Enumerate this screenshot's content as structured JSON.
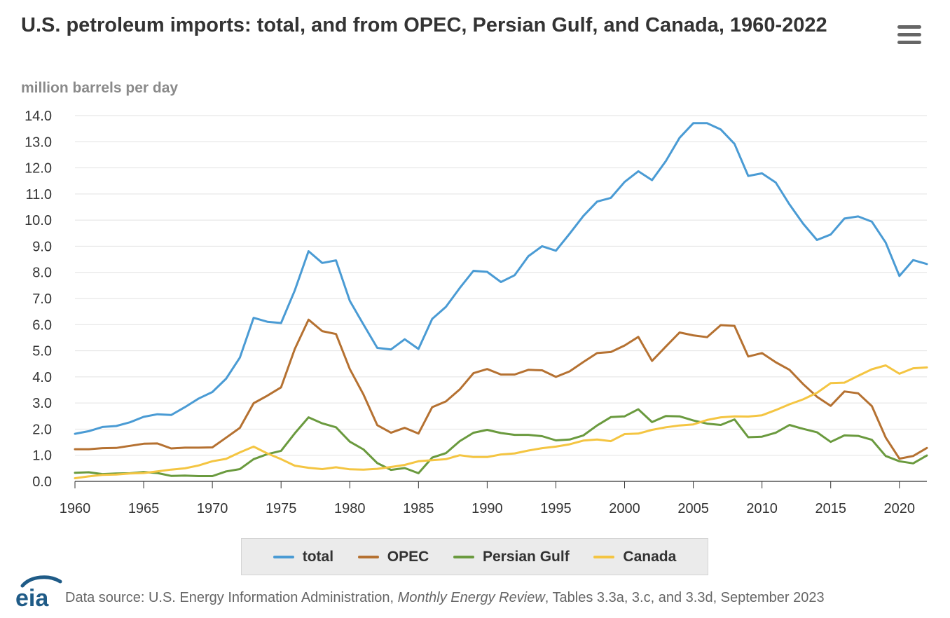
{
  "header": {
    "title": "U.S. petroleum imports: total, and from OPEC, Persian Gulf, and Canada, 1960-2022",
    "menu_icon": "hamburger-menu-icon"
  },
  "logo": {
    "text": "eia",
    "icon": "eia-logo-icon",
    "color": "#1f5b87"
  },
  "source": {
    "prefix": "Data source: U.S. Energy Information Administration, ",
    "publication": "Monthly Energy Review",
    "suffix": ", Tables 3.3a, 3.c, and 3.3d, September 2023"
  },
  "chart_data": {
    "type": "line",
    "title": "U.S. petroleum imports: total, and from OPEC, Persian Gulf, and Canada, 1960-2022",
    "ylabel": "million barrels per day",
    "xlabel": "",
    "xlim": [
      1960,
      2022
    ],
    "ylim": [
      0,
      14
    ],
    "x_ticks": [
      1960,
      1965,
      1970,
      1975,
      1980,
      1985,
      1990,
      1995,
      2000,
      2005,
      2010,
      2015,
      2020
    ],
    "y_ticks": [
      "0.0",
      "1.0",
      "2.0",
      "3.0",
      "4.0",
      "5.0",
      "6.0",
      "7.0",
      "8.0",
      "9.0",
      "10.0",
      "11.0",
      "12.0",
      "13.0",
      "14.0"
    ],
    "grid": "horizontal",
    "legend_position": "bottom-center",
    "x": [
      1960,
      1961,
      1962,
      1963,
      1964,
      1965,
      1966,
      1967,
      1968,
      1969,
      1970,
      1971,
      1972,
      1973,
      1974,
      1975,
      1976,
      1977,
      1978,
      1979,
      1980,
      1981,
      1982,
      1983,
      1984,
      1985,
      1986,
      1987,
      1988,
      1989,
      1990,
      1991,
      1992,
      1993,
      1994,
      1995,
      1996,
      1997,
      1998,
      1999,
      2000,
      2001,
      2002,
      2003,
      2004,
      2005,
      2006,
      2007,
      2008,
      2009,
      2010,
      2011,
      2012,
      2013,
      2014,
      2015,
      2016,
      2017,
      2018,
      2019,
      2020,
      2021,
      2022
    ],
    "series": [
      {
        "name": "total",
        "color": "#4a9bd4",
        "values": [
          1.82,
          1.92,
          2.08,
          2.12,
          2.26,
          2.47,
          2.57,
          2.54,
          2.84,
          3.17,
          3.42,
          3.93,
          4.74,
          6.26,
          6.11,
          6.06,
          7.31,
          8.81,
          8.36,
          8.46,
          6.91,
          6.0,
          5.11,
          5.05,
          5.44,
          5.07,
          6.22,
          6.68,
          7.4,
          8.06,
          8.02,
          7.63,
          7.89,
          8.62,
          9.0,
          8.83,
          9.48,
          10.16,
          10.71,
          10.85,
          11.46,
          11.87,
          11.53,
          12.26,
          13.15,
          13.71,
          13.71,
          13.47,
          12.92,
          11.69,
          11.79,
          11.44,
          10.6,
          9.86,
          9.24,
          9.45,
          10.06,
          10.14,
          9.94,
          9.14,
          7.86,
          8.47,
          8.32
        ]
      },
      {
        "name": "OPEC",
        "color": "#b57131",
        "values": [
          1.23,
          1.23,
          1.27,
          1.28,
          1.36,
          1.44,
          1.45,
          1.26,
          1.29,
          1.29,
          1.3,
          1.67,
          2.05,
          2.99,
          3.28,
          3.6,
          5.07,
          6.19,
          5.75,
          5.64,
          4.3,
          3.32,
          2.15,
          1.86,
          2.05,
          1.83,
          2.84,
          3.06,
          3.52,
          4.14,
          4.3,
          4.09,
          4.09,
          4.27,
          4.25,
          4.0,
          4.21,
          4.57,
          4.91,
          4.95,
          5.2,
          5.53,
          4.61,
          5.16,
          5.7,
          5.59,
          5.52,
          5.98,
          5.95,
          4.78,
          4.91,
          4.56,
          4.27,
          3.72,
          3.24,
          2.89,
          3.44,
          3.37,
          2.88,
          1.68,
          0.87,
          0.97,
          1.28
        ]
      },
      {
        "name": "Persian Gulf",
        "color": "#6a9a3e",
        "values": [
          0.33,
          0.35,
          0.28,
          0.3,
          0.31,
          0.36,
          0.32,
          0.21,
          0.22,
          0.2,
          0.2,
          0.38,
          0.47,
          0.85,
          1.04,
          1.17,
          1.84,
          2.45,
          2.22,
          2.07,
          1.52,
          1.22,
          0.7,
          0.44,
          0.51,
          0.31,
          0.91,
          1.08,
          1.54,
          1.86,
          1.97,
          1.85,
          1.78,
          1.78,
          1.73,
          1.57,
          1.6,
          1.76,
          2.14,
          2.46,
          2.49,
          2.76,
          2.27,
          2.5,
          2.49,
          2.33,
          2.21,
          2.16,
          2.37,
          1.69,
          1.71,
          1.86,
          2.16,
          2.01,
          1.88,
          1.51,
          1.76,
          1.74,
          1.59,
          0.97,
          0.77,
          0.69,
          0.99
        ]
      },
      {
        "name": "Canada",
        "color": "#f4c542",
        "values": [
          0.12,
          0.19,
          0.25,
          0.26,
          0.3,
          0.32,
          0.38,
          0.45,
          0.5,
          0.61,
          0.77,
          0.86,
          1.11,
          1.33,
          1.07,
          0.85,
          0.6,
          0.52,
          0.47,
          0.54,
          0.46,
          0.45,
          0.48,
          0.55,
          0.63,
          0.77,
          0.81,
          0.85,
          1.0,
          0.93,
          0.93,
          1.03,
          1.07,
          1.18,
          1.27,
          1.33,
          1.42,
          1.56,
          1.6,
          1.54,
          1.81,
          1.83,
          1.97,
          2.07,
          2.14,
          2.18,
          2.35,
          2.45,
          2.49,
          2.48,
          2.53,
          2.73,
          2.95,
          3.14,
          3.39,
          3.76,
          3.78,
          4.04,
          4.29,
          4.44,
          4.12,
          4.33,
          4.36
        ]
      }
    ]
  }
}
